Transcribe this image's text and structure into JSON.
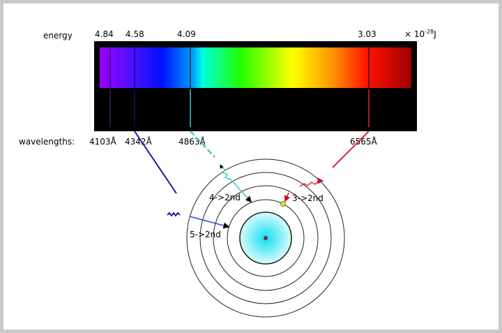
{
  "labels": {
    "energy": "energy",
    "energy_values": [
      "4.84",
      "4.58",
      "4.09",
      "3.03"
    ],
    "energy_unit_prefix": "× 10",
    "energy_unit_exp": "-28",
    "energy_unit_suffix": "J",
    "wavelengths": "wavelengths:",
    "wavelength_values": [
      "4103Å",
      "4342Å",
      "4863Å",
      "6565Å"
    ]
  },
  "transitions": {
    "t5": "5->2nd",
    "t4": "4->2nd",
    "t3": "3->2nd"
  },
  "colors": {
    "violet_line": "#5a2a8a",
    "blue_line": "#1a1aa0",
    "cyan_line": "#3cc8c8",
    "red_line": "#e0203a",
    "nucleus_glow": "#40e0f0",
    "electron": "#e8e030"
  }
}
